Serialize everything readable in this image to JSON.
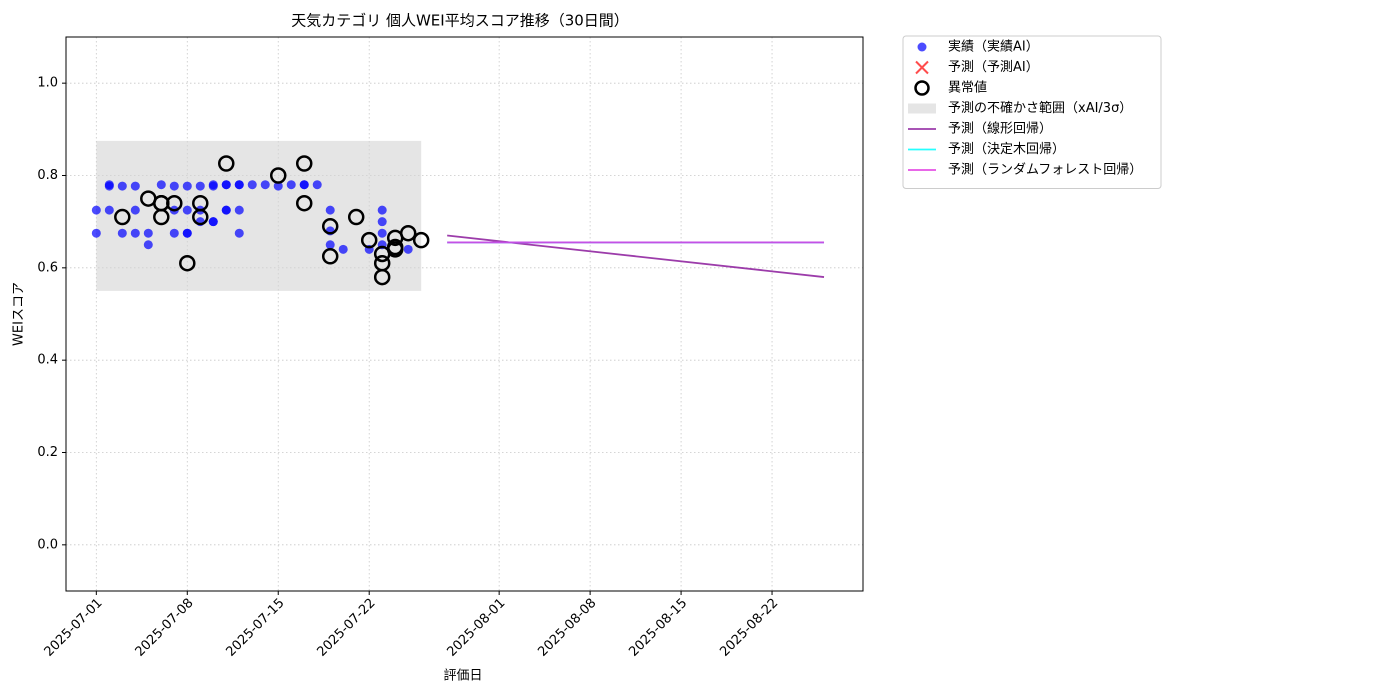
{
  "chart_data": {
    "type": "scatter",
    "title": "天気カテゴリ 個人WEI平均スコア推移（30日間）",
    "xlabel": "評価日",
    "ylabel": "WEIスコア",
    "xlim": [
      "2025-06-28T16:00:00Z",
      "2025-08-29T00:00:00Z"
    ],
    "ylim": [
      -0.1,
      1.1
    ],
    "xticks": [
      "2025-07-01",
      "2025-07-08",
      "2025-07-15",
      "2025-07-22",
      "2025-08-01",
      "2025-08-08",
      "2025-08-15",
      "2025-08-22"
    ],
    "yticks": [
      {
        "value": 0,
        "label": "0.0"
      },
      {
        "value": 0.2,
        "label": "0.2"
      },
      {
        "value": 0.4,
        "label": "0.4"
      },
      {
        "value": 0.6,
        "label": "0.6"
      },
      {
        "value": 0.8,
        "label": "0.8"
      },
      {
        "value": 1,
        "label": "1.0"
      }
    ],
    "grid": true,
    "legend": "outside upper right",
    "band": {
      "name": "予測の不確かさ範囲（xAI/3σ）",
      "color": "#d3d3d3",
      "x": [
        "2025-07-01",
        "2025-07-26"
      ],
      "lower": 0.55,
      "upper": 0.875
    },
    "series": [
      {
        "name": "実績（実績AI）",
        "type": "scatter",
        "color": "#0000ff",
        "x": [
          "2025-07-01",
          "2025-07-01",
          "2025-07-02",
          "2025-07-02",
          "2025-07-02",
          "2025-07-03",
          "2025-07-03",
          "2025-07-04",
          "2025-07-04",
          "2025-07-04",
          "2025-07-05",
          "2025-07-05",
          "2025-07-06",
          "2025-07-07",
          "2025-07-07",
          "2025-07-07",
          "2025-07-08",
          "2025-07-08",
          "2025-07-08",
          "2025-07-08",
          "2025-07-09",
          "2025-07-09",
          "2025-07-09",
          "2025-07-10",
          "2025-07-10",
          "2025-07-10",
          "2025-07-10",
          "2025-07-11",
          "2025-07-11",
          "2025-07-11",
          "2025-07-11",
          "2025-07-12",
          "2025-07-12",
          "2025-07-12",
          "2025-07-12",
          "2025-07-13",
          "2025-07-14",
          "2025-07-15",
          "2025-07-16",
          "2025-07-17",
          "2025-07-17",
          "2025-07-18",
          "2025-07-19",
          "2025-07-19",
          "2025-07-19",
          "2025-07-20",
          "2025-07-22",
          "2025-07-23",
          "2025-07-23",
          "2025-07-23",
          "2025-07-23",
          "2025-07-25"
        ],
        "values": [
          0.725,
          0.675,
          0.777,
          0.78,
          0.725,
          0.777,
          0.675,
          0.725,
          0.777,
          0.675,
          0.675,
          0.65,
          0.78,
          0.777,
          0.725,
          0.675,
          0.675,
          0.777,
          0.725,
          0.675,
          0.7,
          0.777,
          0.725,
          0.7,
          0.777,
          0.78,
          0.7,
          0.78,
          0.725,
          0.725,
          0.78,
          0.78,
          0.725,
          0.78,
          0.675,
          0.78,
          0.78,
          0.777,
          0.78,
          0.78,
          0.78,
          0.78,
          0.725,
          0.65,
          0.68,
          0.64,
          0.64,
          0.725,
          0.7,
          0.675,
          0.65,
          0.64
        ]
      },
      {
        "name": "予測（予測AI）",
        "type": "cross",
        "color": "#ff0000",
        "x": [],
        "values": []
      },
      {
        "name": "異常値",
        "type": "outlier",
        "color": "#000000",
        "x": [
          "2025-07-03",
          "2025-07-05",
          "2025-07-06",
          "2025-07-06",
          "2025-07-06",
          "2025-07-07",
          "2025-07-08",
          "2025-07-09",
          "2025-07-09",
          "2025-07-11",
          "2025-07-15",
          "2025-07-17",
          "2025-07-17",
          "2025-07-19",
          "2025-07-19",
          "2025-07-21",
          "2025-07-22",
          "2025-07-23",
          "2025-07-23",
          "2025-07-23",
          "2025-07-24",
          "2025-07-24",
          "2025-07-24",
          "2025-07-25",
          "2025-07-26"
        ],
        "values": [
          0.71,
          0.75,
          0.74,
          0.71,
          0.74,
          0.74,
          0.61,
          0.71,
          0.74,
          0.826,
          0.8,
          0.74,
          0.826,
          0.69,
          0.625,
          0.71,
          0.66,
          0.58,
          0.63,
          0.61,
          0.645,
          0.64,
          0.665,
          0.675,
          0.66
        ]
      },
      {
        "name": "予測（線形回帰）",
        "type": "line",
        "color": "#8b1a9b",
        "x": [
          "2025-07-28",
          "2025-08-26"
        ],
        "values": [
          0.67,
          0.58
        ]
      },
      {
        "name": "予測（決定木回帰）",
        "type": "line",
        "color": "#00ffff",
        "x": [
          "2025-07-28",
          "2025-08-26"
        ],
        "values": [
          0.655,
          0.655
        ]
      },
      {
        "name": "予測（ランダムフォレスト回帰）",
        "type": "line",
        "color": "#e033e0",
        "x": [
          "2025-07-28",
          "2025-08-26"
        ],
        "values": [
          0.655,
          0.655
        ]
      }
    ]
  }
}
